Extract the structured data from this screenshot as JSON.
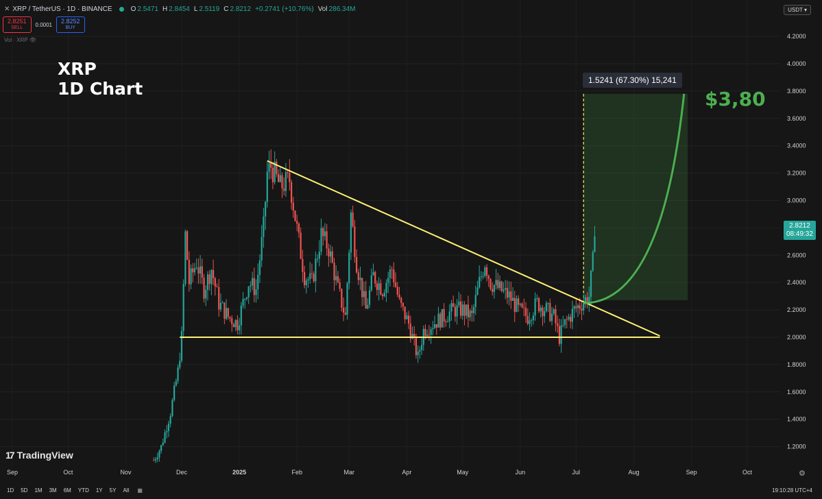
{
  "header": {
    "symbol": "XRP / TetherUS · 1D · BINANCE",
    "ohlc": [
      {
        "label": "O",
        "value": "2.5471"
      },
      {
        "label": "H",
        "value": "2.8454"
      },
      {
        "label": "L",
        "value": "2.5119"
      },
      {
        "label": "C",
        "value": "2.8212"
      },
      {
        "label": "",
        "value": "+0.2741 (+10.76%)"
      },
      {
        "label": "Vol",
        "value": "286.34M"
      }
    ],
    "sell_price": "2.8251",
    "sell_label": "SELL",
    "spread": "0.0001",
    "buy_price": "2.8252",
    "buy_label": "BUY",
    "volume_label": "Vol · XRP",
    "currency": "USDT"
  },
  "title_line1": "XRP",
  "title_line2": "1D Chart",
  "last_price": "2.8212",
  "countdown": "08:49:32",
  "measure_label": "1.5241 (67.30%) 15,241",
  "target_label": "$3,80",
  "brand": "TradingView",
  "timeframes": [
    "1D",
    "5D",
    "1M",
    "3M",
    "6M",
    "YTD",
    "1Y",
    "5Y",
    "All"
  ],
  "clock": "19:10:28 UTC+4",
  "colors": {
    "up": "#26a69a",
    "down": "#ef5350",
    "trendline": "#fff176",
    "projection": "#4caf50",
    "background": "#161616"
  },
  "chart_data": {
    "type": "candlestick",
    "ylim": [
      1.1,
      4.3
    ],
    "y_ticks": [
      "4.2000",
      "4.0000",
      "3.8000",
      "3.6000",
      "3.4000",
      "3.2000",
      "3.0000",
      "2.8000",
      "2.6000",
      "2.4000",
      "2.2000",
      "2.0000",
      "1.8000",
      "1.6000",
      "1.4000",
      "1.2000"
    ],
    "x_ticks": [
      "Sep",
      "Oct",
      "Nov",
      "Dec",
      "2025",
      "Feb",
      "Mar",
      "Apr",
      "May",
      "Jun",
      "Jul",
      "Aug",
      "Sep",
      "Oct"
    ],
    "x_tick_dates": [
      "2024-09-01",
      "2024-10-01",
      "2024-11-01",
      "2024-12-01",
      "2025-01-01",
      "2025-02-01",
      "2025-03-01",
      "2025-04-01",
      "2025-05-01",
      "2025-06-01",
      "2025-07-01",
      "2025-08-01",
      "2025-09-01",
      "2025-10-01"
    ],
    "price_path": [
      [
        "2024-11-16",
        1.1
      ],
      [
        "2024-11-20",
        1.2
      ],
      [
        "2024-11-25",
        1.45
      ],
      [
        "2024-11-29",
        1.75
      ],
      [
        "2024-12-01",
        2.0
      ],
      [
        "2024-12-03",
        2.75
      ],
      [
        "2024-12-05",
        2.4
      ],
      [
        "2024-12-09",
        2.55
      ],
      [
        "2024-12-13",
        2.35
      ],
      [
        "2024-12-17",
        2.5
      ],
      [
        "2024-12-21",
        2.25
      ],
      [
        "2024-12-26",
        2.15
      ],
      [
        "2024-12-31",
        2.1
      ],
      [
        "2025-01-06",
        2.4
      ],
      [
        "2025-01-10",
        2.35
      ],
      [
        "2025-01-14",
        2.8
      ],
      [
        "2025-01-16",
        3.2
      ],
      [
        "2025-01-18",
        3.25
      ],
      [
        "2025-01-23",
        3.1
      ],
      [
        "2025-01-28",
        3.15
      ],
      [
        "2025-02-02",
        2.7
      ],
      [
        "2025-02-05",
        2.45
      ],
      [
        "2025-02-09",
        2.4
      ],
      [
        "2025-02-14",
        2.75
      ],
      [
        "2025-02-18",
        2.65
      ],
      [
        "2025-02-23",
        2.35
      ],
      [
        "2025-02-27",
        2.15
      ],
      [
        "2025-03-02",
        2.9
      ],
      [
        "2025-03-05",
        2.55
      ],
      [
        "2025-03-10",
        2.2
      ],
      [
        "2025-03-14",
        2.45
      ],
      [
        "2025-03-19",
        2.35
      ],
      [
        "2025-03-24",
        2.5
      ],
      [
        "2025-03-28",
        2.25
      ],
      [
        "2025-04-02",
        2.1
      ],
      [
        "2025-04-07",
        1.85
      ],
      [
        "2025-04-10",
        2.05
      ],
      [
        "2025-04-15",
        2.1
      ],
      [
        "2025-04-21",
        2.15
      ],
      [
        "2025-04-26",
        2.2
      ],
      [
        "2025-05-01",
        2.2
      ],
      [
        "2025-05-06",
        2.15
      ],
      [
        "2025-05-10",
        2.4
      ],
      [
        "2025-05-13",
        2.55
      ],
      [
        "2025-05-16",
        2.4
      ],
      [
        "2025-05-21",
        2.35
      ],
      [
        "2025-05-26",
        2.3
      ],
      [
        "2025-05-31",
        2.2
      ],
      [
        "2025-06-05",
        2.15
      ],
      [
        "2025-06-10",
        2.25
      ],
      [
        "2025-06-15",
        2.2
      ],
      [
        "2025-06-19",
        2.15
      ],
      [
        "2025-06-22",
        2.0
      ],
      [
        "2025-06-25",
        2.1
      ],
      [
        "2025-06-30",
        2.2
      ],
      [
        "2025-07-04",
        2.25
      ],
      [
        "2025-07-08",
        2.3
      ],
      [
        "2025-07-10",
        2.55
      ],
      [
        "2025-07-11",
        2.82
      ]
    ],
    "annotations": {
      "descending_trendline": [
        [
          "2025-01-16",
          3.29
        ],
        [
          "2025-08-15",
          2.01
        ]
      ],
      "support_line": [
        [
          "2024-11-30",
          2.0
        ],
        [
          "2025-08-15",
          2.0
        ]
      ],
      "projection_curve": {
        "start": [
          "2025-07-05",
          2.25
        ],
        "end": [
          "2025-08-28",
          3.78
        ]
      },
      "projection_box": {
        "x": [
          "2025-07-05",
          "2025-08-30"
        ],
        "y": [
          2.27,
          3.78
        ]
      }
    }
  }
}
